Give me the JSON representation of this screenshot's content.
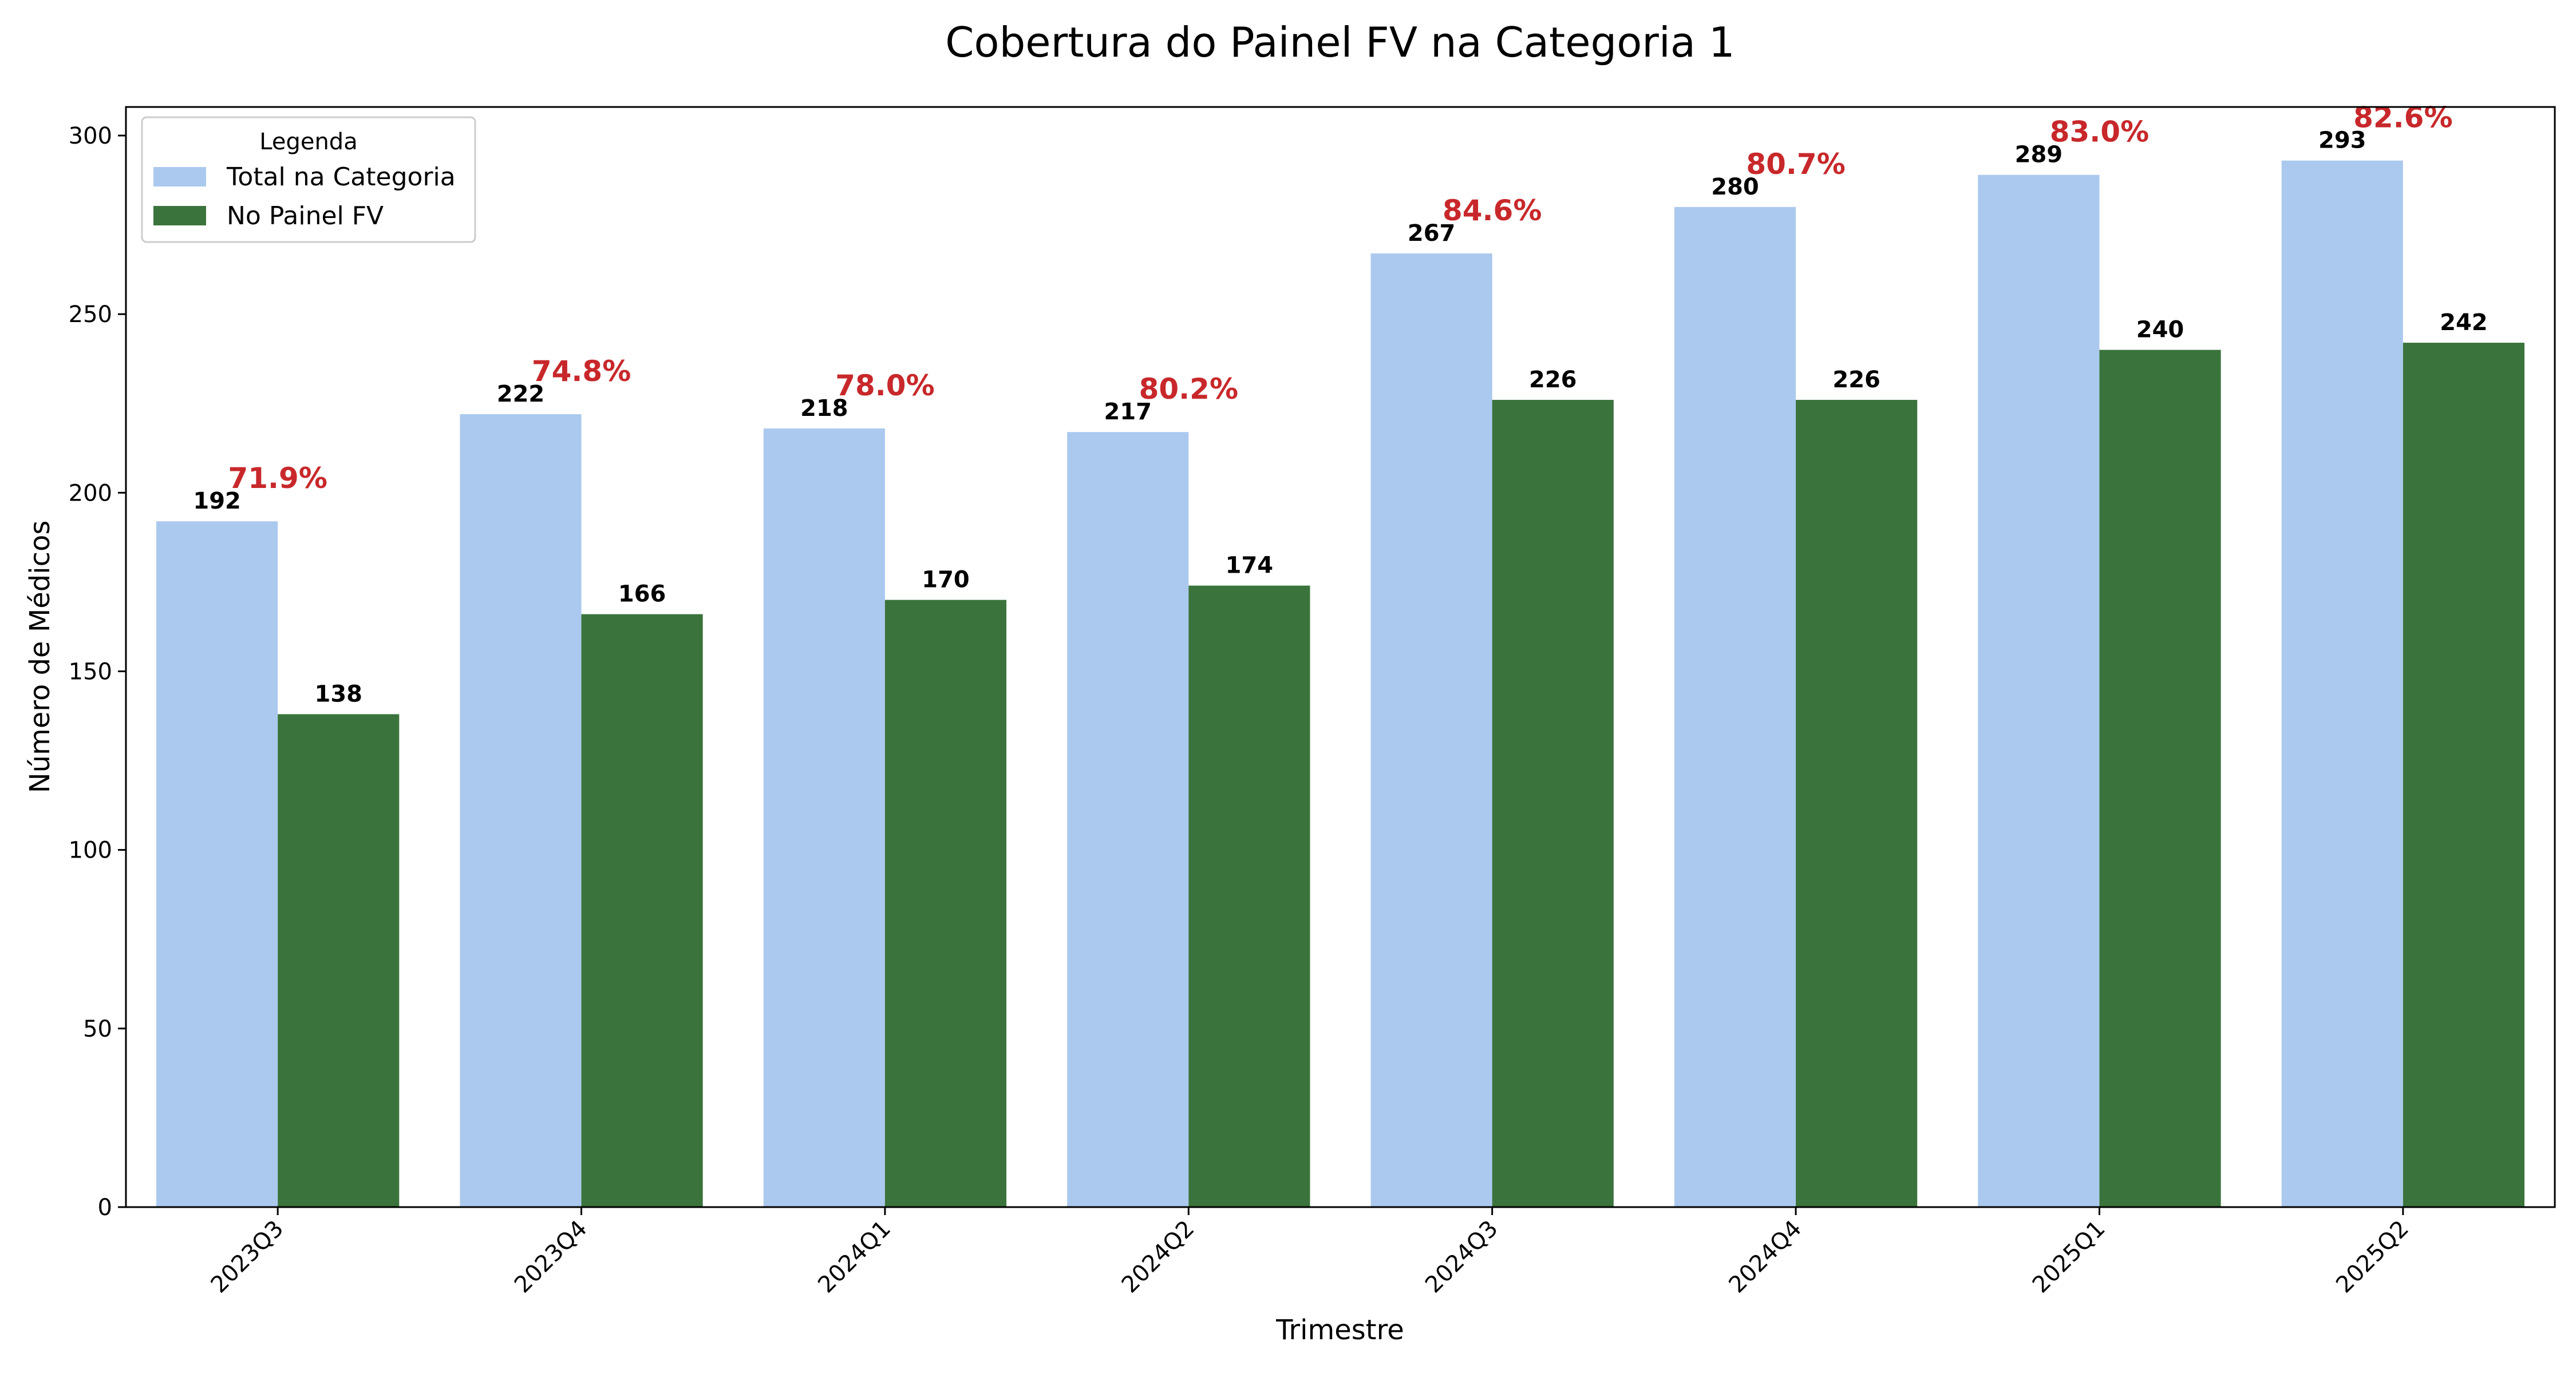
{
  "chart_data": {
    "type": "bar",
    "title": "Cobertura do Painel FV na Categoria 1",
    "xlabel": "Trimestre",
    "ylabel": "Número de Médicos",
    "ylim": [
      0,
      308
    ],
    "yticks": [
      0,
      50,
      100,
      150,
      200,
      250,
      300
    ],
    "categories": [
      "2023Q3",
      "2023Q4",
      "2024Q1",
      "2024Q2",
      "2024Q3",
      "2024Q4",
      "2025Q1",
      "2025Q2"
    ],
    "series": [
      {
        "name": "Total na Categoria",
        "color": "#abc9ee",
        "values": [
          192,
          222,
          218,
          217,
          267,
          280,
          289,
          293
        ]
      },
      {
        "name": "No Painel FV",
        "color": "#3a743c",
        "values": [
          138,
          166,
          170,
          174,
          226,
          226,
          240,
          242
        ]
      }
    ],
    "coverage_labels": [
      "71.9%",
      "74.8%",
      "78.0%",
      "80.2%",
      "84.6%",
      "80.7%",
      "83.0%",
      "82.6%"
    ],
    "coverage_color": "#c8282b",
    "legend": {
      "title": "Legenda",
      "placement": "top-left"
    },
    "grid": false
  }
}
